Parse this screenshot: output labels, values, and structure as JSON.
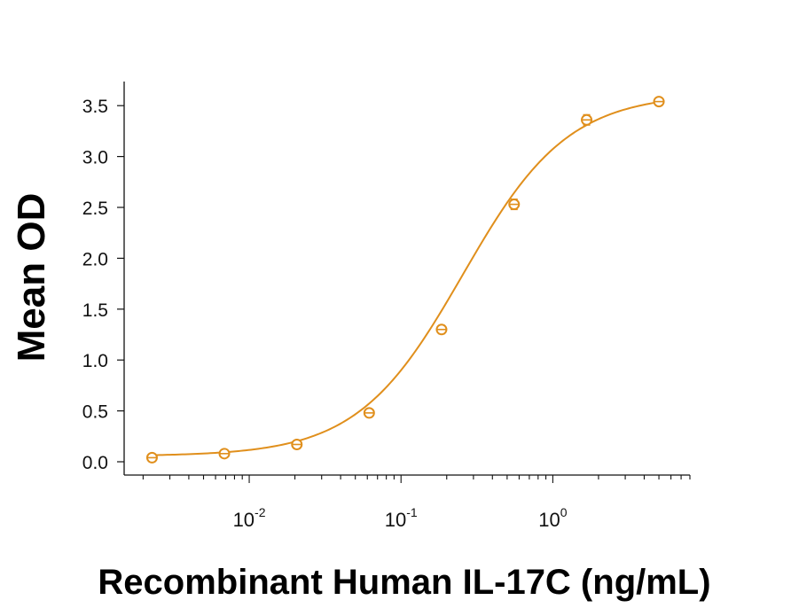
{
  "chart_data": {
    "type": "scatter",
    "xlabel": "Recombinant Human IL-17C (ng/mL)",
    "ylabel": "Mean OD",
    "x_scale": "log",
    "xlim": [
      0.0015,
      8.0
    ],
    "ylim": [
      -0.12,
      3.75
    ],
    "y_ticks": [
      0.0,
      0.5,
      1.0,
      1.5,
      2.0,
      2.5,
      3.0,
      3.5
    ],
    "y_tick_labels": [
      "0.0",
      "0.5",
      "1.0",
      "1.5",
      "2.0",
      "2.5",
      "3.0",
      "3.5"
    ],
    "x_ticks": [
      {
        "value": 0.01,
        "base": "10",
        "exp": "-2"
      },
      {
        "value": 0.1,
        "base": "10",
        "exp": "-1"
      },
      {
        "value": 1,
        "base": "10",
        "exp": "0"
      }
    ],
    "grid": false,
    "series_color": "#e08f1c",
    "series": [
      {
        "x": [
          0.00229,
          0.00686,
          0.0206,
          0.0617,
          0.185,
          0.556,
          1.67,
          5.0
        ],
        "y": [
          0.04,
          0.08,
          0.17,
          0.48,
          1.3,
          2.53,
          3.36,
          3.54
        ],
        "error": [
          0.02,
          0.02,
          0.02,
          0.02,
          0.04,
          0.05,
          0.05,
          0.03
        ]
      }
    ]
  }
}
